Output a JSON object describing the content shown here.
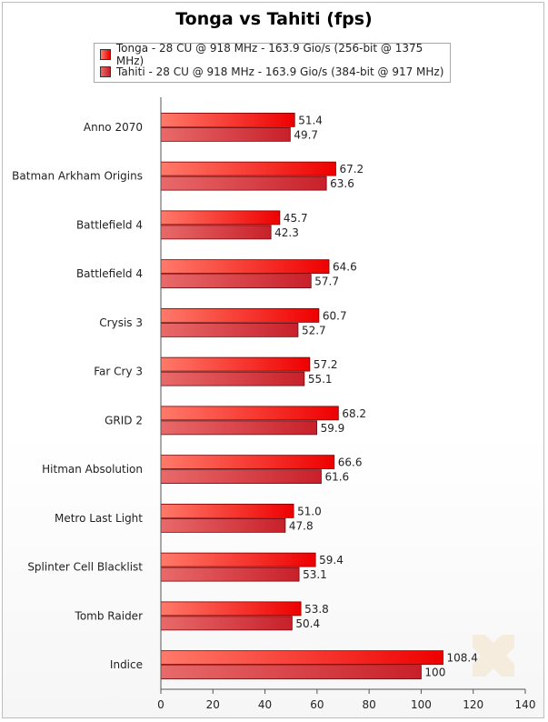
{
  "title": "Tonga vs Tahiti (fps)",
  "colors": {
    "tonga_light": "#ff7a6a",
    "tonga_dark": "#ee0000",
    "tahiti_light": "#e86a6a",
    "tahiti_dark": "#c8202a"
  },
  "chart_data": {
    "type": "bar",
    "orientation": "horizontal",
    "title": "Tonga vs Tahiti (fps)",
    "categories": [
      "Anno 2070",
      "Batman Arkham Origins",
      "Battlefield 4",
      "Battlefield 4",
      "Crysis 3",
      "Far Cry 3",
      "GRID 2",
      "Hitman Absolution",
      "Metro Last Light",
      "Splinter Cell Blacklist",
      "Tomb Raider",
      "Indice"
    ],
    "series": [
      {
        "name": "Tonga - 28 CU @ 918 MHz - 163.9 Gio/s (256-bit @ 1375 MHz)",
        "values": [
          51.4,
          67.2,
          45.7,
          64.6,
          60.7,
          57.2,
          68.2,
          66.6,
          51.0,
          59.4,
          53.8,
          108.4
        ],
        "labels": [
          "51.4",
          "67.2",
          "45.7",
          "64.6",
          "60.7",
          "57.2",
          "68.2",
          "66.6",
          "51.0",
          "59.4",
          "53.8",
          "108.4"
        ]
      },
      {
        "name": "Tahiti - 28 CU @ 918 MHz - 163.9 Gio/s (384-bit @ 917 MHz)",
        "values": [
          49.7,
          63.6,
          42.3,
          57.7,
          52.7,
          55.1,
          59.9,
          61.6,
          47.8,
          53.1,
          50.4,
          100
        ],
        "labels": [
          "49.7",
          "63.6",
          "42.3",
          "57.7",
          "52.7",
          "55.1",
          "59.9",
          "61.6",
          "47.8",
          "53.1",
          "50.4",
          "100"
        ]
      }
    ],
    "xlim": [
      0,
      140
    ],
    "xticks": [
      "0",
      "20",
      "40",
      "60",
      "80",
      "100",
      "120",
      "140"
    ],
    "xtick_values": [
      0,
      20,
      40,
      60,
      80,
      100,
      120,
      140
    ],
    "grid": false,
    "legend_position": "top"
  }
}
